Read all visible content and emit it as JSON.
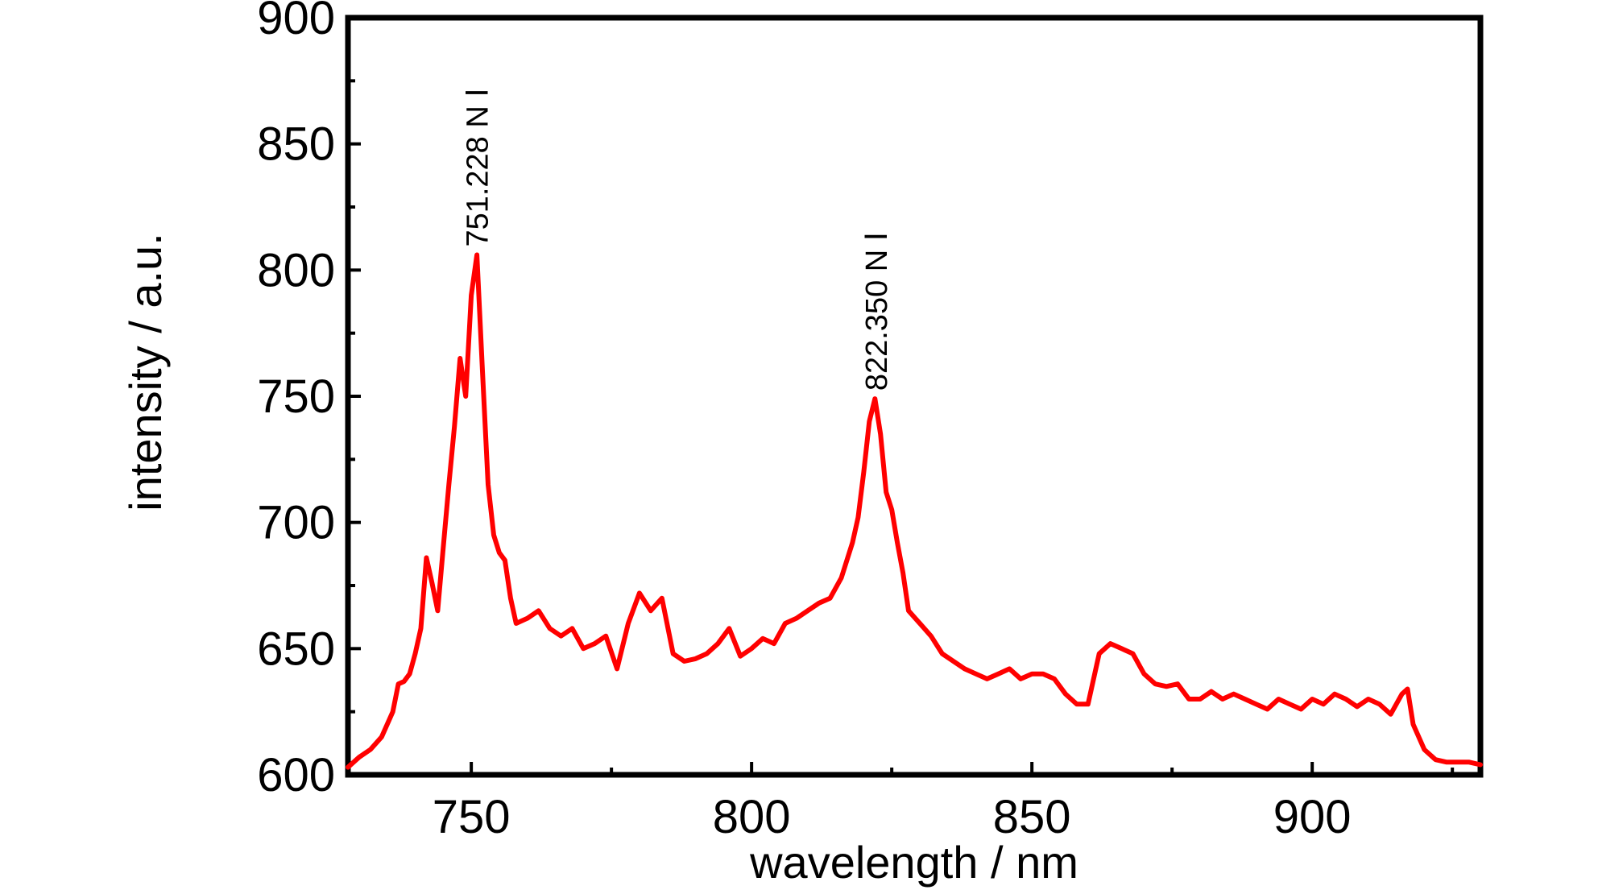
{
  "chart_data": {
    "type": "line",
    "title": "",
    "xlabel": "wavelength / nm",
    "ylabel": "intensity / a.u.",
    "xlim": [
      728,
      930
    ],
    "ylim": [
      600,
      900
    ],
    "xticks": [
      750,
      800,
      850,
      900
    ],
    "yticks": [
      600,
      650,
      700,
      750,
      800,
      850,
      900
    ],
    "grid": false,
    "legend": "none",
    "line_color": "#ff0000",
    "annotations": [
      {
        "text": "751.228 N Ⅰ",
        "x": 751.2,
        "y": 806
      },
      {
        "text": "822.350 N Ⅰ",
        "x": 822.4,
        "y": 749
      }
    ],
    "series": [
      {
        "x": [
          728,
          730,
          732,
          734,
          736,
          737,
          738,
          739,
          740,
          741,
          742,
          743,
          744,
          745,
          746,
          747,
          748,
          749,
          750,
          751,
          752,
          753,
          754,
          755,
          756,
          757,
          758,
          760,
          762,
          764,
          766,
          768,
          770,
          772,
          774,
          776,
          778,
          780,
          782,
          784,
          786,
          788,
          790,
          792,
          794,
          796,
          798,
          800,
          802,
          804,
          806,
          808,
          810,
          812,
          814,
          816,
          818,
          819,
          820,
          821,
          822,
          823,
          824,
          825,
          826,
          827,
          828,
          830,
          832,
          834,
          836,
          838,
          840,
          842,
          844,
          846,
          848,
          850,
          852,
          854,
          856,
          858,
          860,
          862,
          864,
          866,
          868,
          870,
          872,
          874,
          876,
          878,
          880,
          882,
          884,
          886,
          888,
          890,
          892,
          894,
          896,
          898,
          900,
          902,
          904,
          906,
          908,
          910,
          912,
          914,
          916,
          917,
          918,
          920,
          922,
          924,
          926,
          928,
          930
        ],
        "values": [
          603,
          607,
          610,
          615,
          625,
          636,
          637,
          640,
          648,
          658,
          686,
          676,
          665,
          690,
          715,
          738,
          765,
          750,
          790,
          806,
          760,
          715,
          695,
          688,
          685,
          670,
          660,
          662,
          665,
          658,
          655,
          658,
          650,
          652,
          655,
          642,
          660,
          672,
          665,
          670,
          648,
          645,
          646,
          648,
          652,
          658,
          647,
          650,
          654,
          652,
          660,
          662,
          665,
          668,
          670,
          678,
          692,
          702,
          720,
          740,
          749,
          735,
          712,
          705,
          692,
          680,
          665,
          660,
          655,
          648,
          645,
          642,
          640,
          638,
          640,
          642,
          638,
          640,
          640,
          638,
          632,
          628,
          628,
          648,
          652,
          650,
          648,
          640,
          636,
          635,
          636,
          630,
          630,
          633,
          630,
          632,
          630,
          628,
          626,
          630,
          628,
          626,
          630,
          628,
          632,
          630,
          627,
          630,
          628,
          624,
          632,
          634,
          620,
          610,
          606,
          605,
          605,
          605,
          604
        ]
      }
    ]
  }
}
